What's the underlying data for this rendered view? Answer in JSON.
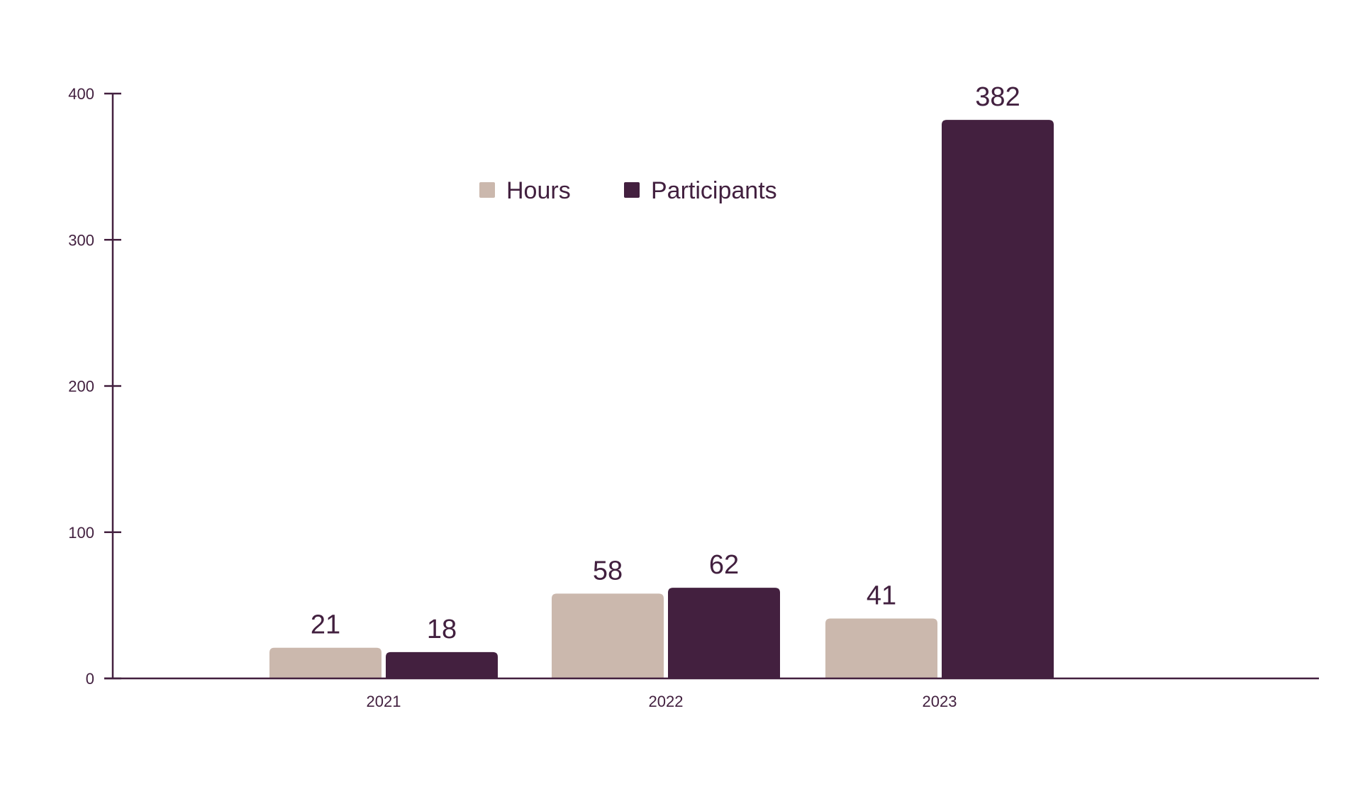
{
  "chart_data": {
    "type": "bar",
    "categories": [
      "2021",
      "2022",
      "2023"
    ],
    "series": [
      {
        "name": "Hours",
        "values": [
          21,
          58,
          41
        ],
        "color": "#cbb8ad"
      },
      {
        "name": "Participants",
        "values": [
          18,
          62,
          382
        ],
        "color": "#43203f"
      }
    ],
    "ylim": [
      0,
      400
    ],
    "yticks": [
      0,
      100,
      200,
      300,
      400
    ],
    "xlabel": "",
    "ylabel": "",
    "title": "",
    "grid": false,
    "legend": "top-center",
    "axis_color": "#43203f",
    "text_color": "#42203f"
  }
}
